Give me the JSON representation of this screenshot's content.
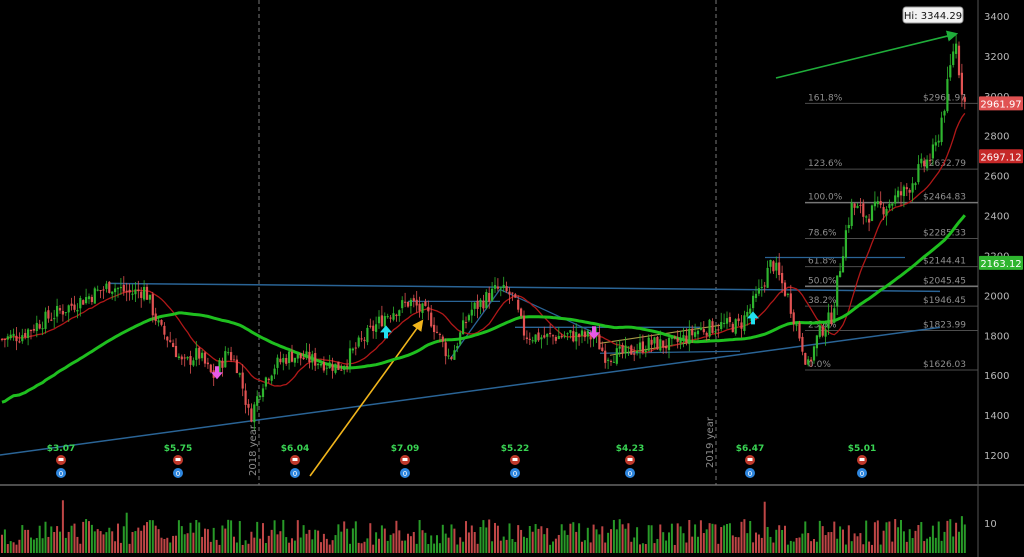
{
  "chart_data": {
    "type": "candlestick",
    "hi_label": "Hi: 3344.29",
    "ylim": [
      1050,
      3480
    ],
    "y_ticks": [
      1200,
      1400,
      1600,
      1800,
      2000,
      2200,
      2400,
      2600,
      2800,
      3000,
      3200,
      3400
    ],
    "y_tick_labels": [
      "1200",
      "1400",
      "1600",
      "1800",
      "2000",
      "2200",
      "2400",
      "2600",
      "2800",
      "3000",
      "3200",
      "3400"
    ],
    "year_labels": [
      "2018 year",
      "2019 year"
    ],
    "fib_levels": [
      {
        "ratio": "161.8%",
        "price": "$2961.97",
        "value": 2961.97
      },
      {
        "ratio": "123.6%",
        "price": "$2632.79",
        "value": 2632.79
      },
      {
        "ratio": "100.0%",
        "price": "$2464.83",
        "value": 2464.83
      },
      {
        "ratio": "78.6%",
        "price": "$2285.33",
        "value": 2285.33
      },
      {
        "ratio": "61.8%",
        "price": "$2144.41",
        "value": 2144.41
      },
      {
        "ratio": "50.0%",
        "price": "$2045.45",
        "value": 2045.45
      },
      {
        "ratio": "38.2%",
        "price": "$1946.45",
        "value": 1946.45
      },
      {
        "ratio": "23.6%",
        "price": "$1823.99",
        "value": 1823.99
      },
      {
        "ratio": "0.0%",
        "price": "$1626.03",
        "value": 1626.03
      }
    ],
    "price_tags": [
      {
        "label": "2961.97",
        "value": 2961.97,
        "color": "#e05252"
      },
      {
        "label": "2697.12",
        "value": 2697.12,
        "color": "#c62828"
      },
      {
        "label": "2163.12",
        "value": 2163.12,
        "color": "#2fb52f"
      }
    ],
    "earnings": [
      "$3.07",
      "$5.75",
      "$6.04",
      "$7.09",
      "$5.22",
      "$4.23",
      "$6.47",
      "$5.01"
    ],
    "volume_axis_label": "10",
    "price_anchors": [
      [
        0,
        1780
      ],
      [
        20,
        1800
      ],
      [
        45,
        1880
      ],
      [
        75,
        1960
      ],
      [
        110,
        2050
      ],
      [
        130,
        2010
      ],
      [
        145,
        2030
      ],
      [
        160,
        1830
      ],
      [
        172,
        1760
      ],
      [
        183,
        1650
      ],
      [
        198,
        1710
      ],
      [
        213,
        1590
      ],
      [
        228,
        1720
      ],
      [
        238,
        1640
      ],
      [
        250,
        1380
      ],
      [
        262,
        1560
      ],
      [
        275,
        1650
      ],
      [
        290,
        1700
      ],
      [
        310,
        1680
      ],
      [
        340,
        1640
      ],
      [
        360,
        1760
      ],
      [
        385,
        1900
      ],
      [
        410,
        1970
      ],
      [
        430,
        1890
      ],
      [
        450,
        1680
      ],
      [
        470,
        1920
      ],
      [
        497,
        2030
      ],
      [
        512,
        2000
      ],
      [
        525,
        1800
      ],
      [
        545,
        1790
      ],
      [
        570,
        1800
      ],
      [
        595,
        1790
      ],
      [
        605,
        1700
      ],
      [
        625,
        1710
      ],
      [
        650,
        1760
      ],
      [
        672,
        1750
      ],
      [
        700,
        1830
      ],
      [
        720,
        1850
      ],
      [
        740,
        1850
      ],
      [
        758,
        2000
      ],
      [
        772,
        2170
      ],
      [
        788,
        1990
      ],
      [
        800,
        1790
      ],
      [
        808,
        1640
      ],
      [
        818,
        1800
      ],
      [
        832,
        1900
      ],
      [
        845,
        2300
      ],
      [
        852,
        2450
      ],
      [
        865,
        2400
      ],
      [
        885,
        2450
      ],
      [
        905,
        2520
      ],
      [
        920,
        2630
      ],
      [
        935,
        2720
      ],
      [
        948,
        3050
      ],
      [
        955,
        3300
      ],
      [
        960,
        3100
      ],
      [
        965,
        2960
      ]
    ]
  },
  "colors": {
    "background": "#000000",
    "candle_up": "#2fb52f",
    "candle_down": "#e05252",
    "ma_200": "#1fbf1f",
    "ma_50": "#b01818",
    "trendline_blue": "#2a6496",
    "arrow_gold": "#f1b51c",
    "arrow_green": "#1fae3a",
    "marker_cyan": "#22e0f0",
    "marker_magenta": "#e85ae8",
    "fib_line": "#4d4d4d",
    "axis_text": "#b8b8b8",
    "earnings_text": "#39d353",
    "earnings_icon_red": "#c0392b",
    "earnings_icon_blue": "#2e86de"
  }
}
